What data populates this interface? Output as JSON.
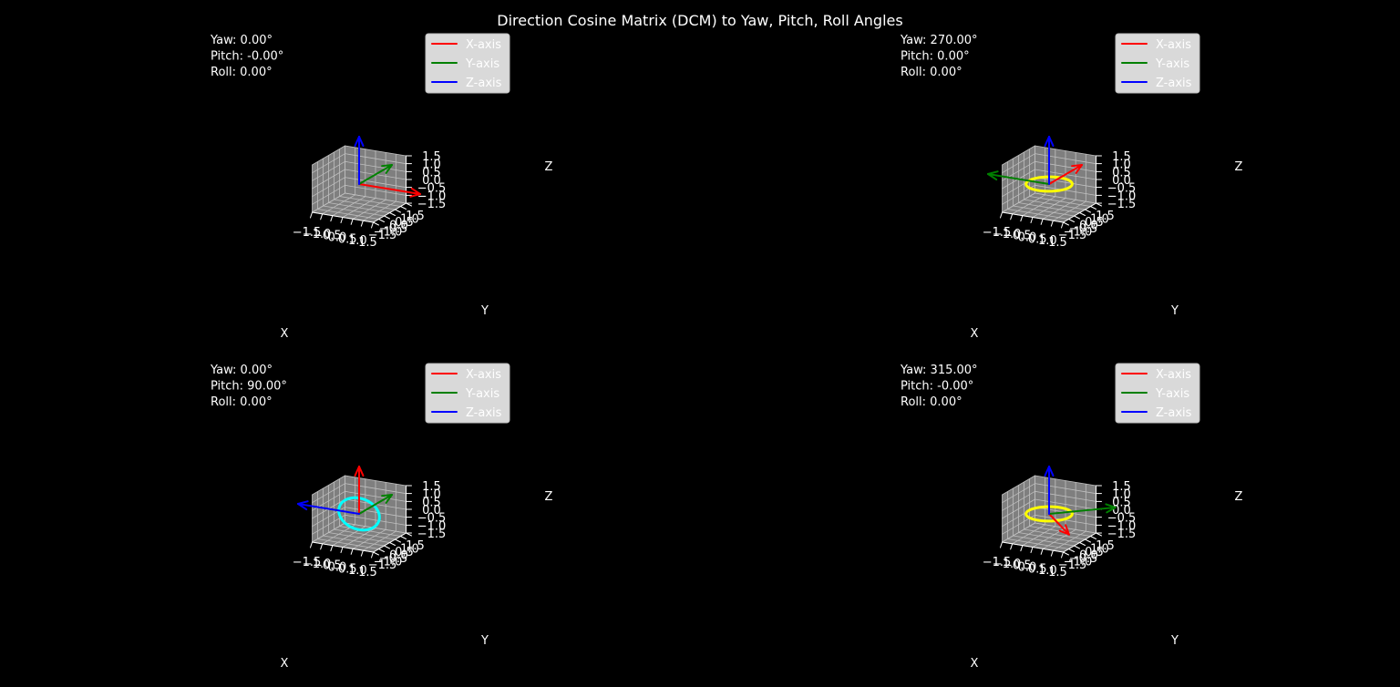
{
  "figure": {
    "title": "Direction Cosine Matrix (DCM) to Yaw, Pitch, Roll Angles",
    "background": "#000000",
    "pane_color": "#7f7f7f",
    "grid_color": "#bfbfbf",
    "text_color": "#ffffff"
  },
  "chart_data": [
    {
      "type": "3d-quiver",
      "annotation": [
        "Yaw: 0.00°",
        "Pitch: -0.00°",
        "Roll: 0.00°"
      ],
      "xlabel": "X",
      "ylabel": "Y",
      "zlabel": "Z",
      "xlim": [
        -1.5,
        1.5
      ],
      "ylim": [
        -1.5,
        1.5
      ],
      "zlim": [
        -1.5,
        1.5
      ],
      "xticks": [
        "−1.5",
        "−1.0",
        "−0.5",
        "0.0",
        "0.5",
        "1.0",
        "1.5"
      ],
      "yticks": [
        "−1.5",
        "−1.0",
        "−0.5",
        "0.0",
        "0.5",
        "1.0",
        "1.5"
      ],
      "zticks": [
        "−1.5",
        "−1.0",
        "−0.5",
        "0.0",
        "0.5",
        "1.0",
        "1.5"
      ],
      "grid": true,
      "legend": {
        "position": "top-right",
        "entries": [
          "X-axis",
          "Y-axis",
          "Z-axis"
        ]
      },
      "series": [
        {
          "name": "X-axis",
          "color": "#ff0000",
          "vector": [
            1,
            0,
            0
          ]
        },
        {
          "name": "Y-axis",
          "color": "#008000",
          "vector": [
            0,
            1,
            0
          ]
        },
        {
          "name": "Z-axis",
          "color": "#0000ff",
          "vector": [
            0,
            0,
            1
          ]
        }
      ],
      "ring": null
    },
    {
      "type": "3d-quiver",
      "annotation": [
        "Yaw: 270.00°",
        "Pitch: 0.00°",
        "Roll: 0.00°"
      ],
      "xlabel": "X",
      "ylabel": "Y",
      "zlabel": "Z",
      "xlim": [
        -1.5,
        1.5
      ],
      "ylim": [
        -1.5,
        1.5
      ],
      "zlim": [
        -1.5,
        1.5
      ],
      "xticks": [
        "−1.5",
        "−1.0",
        "−0.5",
        "0.0",
        "0.5",
        "1.0",
        "1.5"
      ],
      "yticks": [
        "−1.5",
        "−1.0",
        "−0.5",
        "0.0",
        "0.5",
        "1.0",
        "1.5"
      ],
      "zticks": [
        "−1.5",
        "−1.0",
        "−0.5",
        "0.0",
        "0.5",
        "1.0",
        "1.5"
      ],
      "grid": true,
      "legend": {
        "position": "top-right",
        "entries": [
          "X-axis",
          "Y-axis",
          "Z-axis"
        ]
      },
      "series": [
        {
          "name": "X-axis",
          "color": "#ff0000",
          "vector": [
            0,
            1,
            0
          ]
        },
        {
          "name": "Y-axis",
          "color": "#008000",
          "vector": [
            -1,
            0,
            0
          ]
        },
        {
          "name": "Z-axis",
          "color": "#0000ff",
          "vector": [
            0,
            0,
            1
          ]
        }
      ],
      "ring": {
        "plane": "xy",
        "radius": 1,
        "color": "#ffff00"
      }
    },
    {
      "type": "3d-quiver",
      "annotation": [
        "Yaw: 0.00°",
        "Pitch: 90.00°",
        "Roll: 0.00°"
      ],
      "xlabel": "X",
      "ylabel": "Y",
      "zlabel": "Z",
      "xlim": [
        -1.5,
        1.5
      ],
      "ylim": [
        -1.5,
        1.5
      ],
      "zlim": [
        -1.5,
        1.5
      ],
      "xticks": [
        "−1.5",
        "−1.0",
        "−0.5",
        "0.0",
        "0.5",
        "1.0",
        "1.5"
      ],
      "yticks": [
        "−1.5",
        "−1.0",
        "−0.5",
        "0.0",
        "0.5",
        "1.0",
        "1.5"
      ],
      "zticks": [
        "−1.5",
        "−1.0",
        "−0.5",
        "0.0",
        "0.5",
        "1.0",
        "1.5"
      ],
      "grid": true,
      "legend": {
        "position": "top-right",
        "entries": [
          "X-axis",
          "Y-axis",
          "Z-axis"
        ]
      },
      "series": [
        {
          "name": "X-axis",
          "color": "#ff0000",
          "vector": [
            0,
            0,
            1
          ]
        },
        {
          "name": "Y-axis",
          "color": "#008000",
          "vector": [
            0,
            1,
            0
          ]
        },
        {
          "name": "Z-axis",
          "color": "#0000ff",
          "vector": [
            -1,
            0,
            0
          ]
        }
      ],
      "ring": {
        "plane": "xz",
        "radius": 1,
        "color": "#00ffff"
      }
    },
    {
      "type": "3d-quiver",
      "annotation": [
        "Yaw: 315.00°",
        "Pitch: -0.00°",
        "Roll: 0.00°"
      ],
      "xlabel": "X",
      "ylabel": "Y",
      "zlabel": "Z",
      "xlim": [
        -1.5,
        1.5
      ],
      "ylim": [
        -1.5,
        1.5
      ],
      "zlim": [
        -1.5,
        1.5
      ],
      "xticks": [
        "−1.5",
        "−1.0",
        "−0.5",
        "0.0",
        "0.5",
        "1.0",
        "1.5"
      ],
      "yticks": [
        "−1.5",
        "−1.0",
        "−0.5",
        "0.0",
        "0.5",
        "1.0",
        "1.5"
      ],
      "zticks": [
        "−1.5",
        "−1.0",
        "−0.5",
        "0.0",
        "0.5",
        "1.0",
        "1.5"
      ],
      "grid": true,
      "legend": {
        "position": "top-right",
        "entries": [
          "X-axis",
          "Y-axis",
          "Z-axis"
        ]
      },
      "series": [
        {
          "name": "X-axis",
          "color": "#ff0000",
          "vector": [
            0.7071,
            -0.7071,
            0
          ]
        },
        {
          "name": "Y-axis",
          "color": "#008000",
          "vector": [
            0.7071,
            0.7071,
            0
          ]
        },
        {
          "name": "Z-axis",
          "color": "#0000ff",
          "vector": [
            0,
            0,
            1
          ]
        }
      ],
      "ring": {
        "plane": "xy",
        "radius": 1,
        "color": "#ffff00"
      }
    }
  ]
}
